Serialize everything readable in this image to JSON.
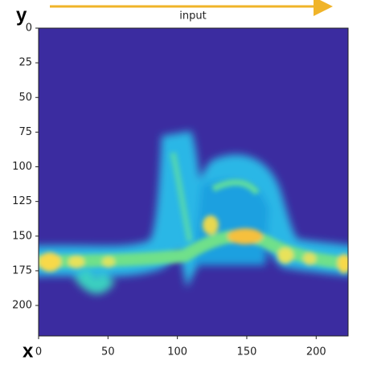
{
  "chart_data": {
    "type": "heatmap",
    "title": "input",
    "x_label": "x",
    "y_label": "y",
    "xlim": [
      0,
      223
    ],
    "ylim": [
      0,
      222
    ],
    "y_inverted": true,
    "xticks": [
      0,
      50,
      100,
      150,
      200
    ],
    "yticks": [
      0,
      25,
      50,
      75,
      100,
      125,
      150,
      175,
      200
    ],
    "background_color": "#3b2ca0"
  }
}
